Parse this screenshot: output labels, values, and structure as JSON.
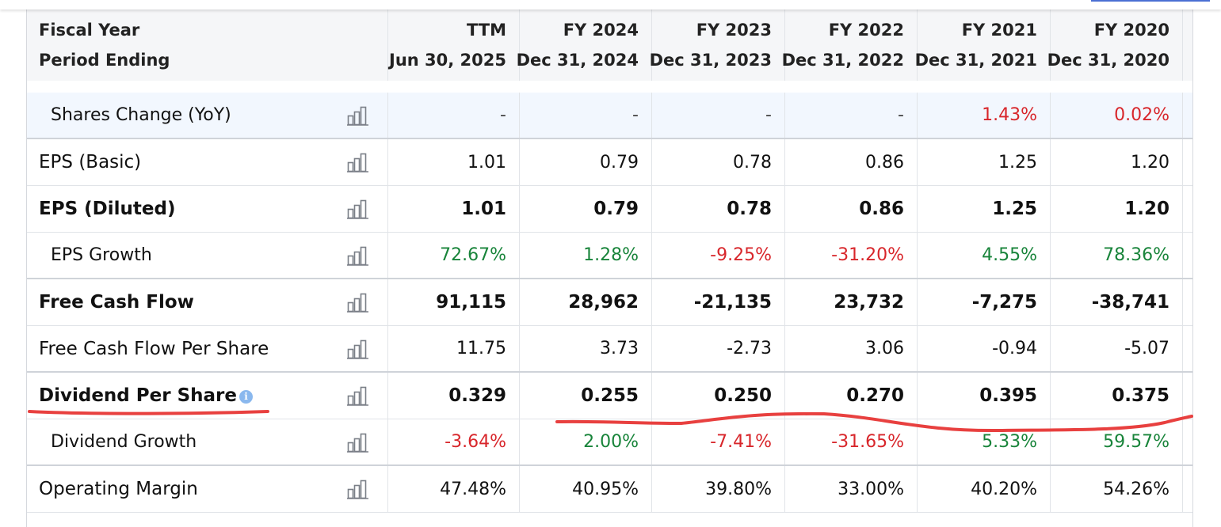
{
  "header": {
    "label_line1": "Fiscal Year",
    "label_line2": "Period Ending",
    "columns": [
      {
        "line1": "TTM",
        "line2": "Jun 30, 2025"
      },
      {
        "line1": "FY 2024",
        "line2": "Dec 31, 2024"
      },
      {
        "line1": "FY 2023",
        "line2": "Dec 31, 2023"
      },
      {
        "line1": "FY 2022",
        "line2": "Dec 31, 2022"
      },
      {
        "line1": "FY 2021",
        "line2": "Dec 31, 2021"
      },
      {
        "line1": "FY 2020",
        "line2": "Dec 31, 2020"
      }
    ]
  },
  "rows": [
    {
      "label": "Shares Change (YoY)",
      "style": "indent",
      "values": [
        "-",
        "-",
        "-",
        "-",
        "1.43%",
        "0.02%"
      ],
      "colors": [
        "dash",
        "dash",
        "dash",
        "dash",
        "red",
        "red"
      ]
    },
    {
      "label": "EPS (Basic)",
      "style": "plain",
      "values": [
        "1.01",
        "0.79",
        "0.78",
        "0.86",
        "1.25",
        "1.20"
      ],
      "colors": [
        "",
        "",
        "",
        "",
        "",
        ""
      ]
    },
    {
      "label": "EPS (Diluted)",
      "style": "bold",
      "values": [
        "1.01",
        "0.79",
        "0.78",
        "0.86",
        "1.25",
        "1.20"
      ],
      "colors": [
        "",
        "",
        "",
        "",
        "",
        ""
      ]
    },
    {
      "label": "EPS Growth",
      "style": "indent",
      "values": [
        "72.67%",
        "1.28%",
        "-9.25%",
        "-31.20%",
        "4.55%",
        "78.36%"
      ],
      "colors": [
        "green",
        "green",
        "red",
        "red",
        "green",
        "green"
      ]
    },
    {
      "label": "Free Cash Flow",
      "style": "bold",
      "values": [
        "91,115",
        "28,962",
        "-21,135",
        "23,732",
        "-7,275",
        "-38,741"
      ],
      "colors": [
        "",
        "",
        "",
        "",
        "",
        ""
      ]
    },
    {
      "label": "Free Cash Flow Per Share",
      "style": "plain",
      "values": [
        "11.75",
        "3.73",
        "-2.73",
        "3.06",
        "-0.94",
        "-5.07"
      ],
      "colors": [
        "",
        "",
        "",
        "",
        "",
        ""
      ]
    },
    {
      "label": "Dividend Per Share",
      "style": "bold",
      "info": true,
      "values": [
        "0.329",
        "0.255",
        "0.250",
        "0.270",
        "0.395",
        "0.375"
      ],
      "colors": [
        "",
        "",
        "",
        "",
        "",
        ""
      ]
    },
    {
      "label": "Dividend Growth",
      "style": "indent",
      "values": [
        "-3.64%",
        "2.00%",
        "-7.41%",
        "-31.65%",
        "5.33%",
        "59.57%"
      ],
      "colors": [
        "red",
        "green",
        "red",
        "red",
        "green",
        "green"
      ]
    },
    {
      "label": "Operating Margin",
      "style": "plain",
      "values": [
        "47.48%",
        "40.95%",
        "39.80%",
        "33.00%",
        "40.20%",
        "54.26%"
      ],
      "colors": [
        "",
        "",
        "",
        "",
        "",
        ""
      ]
    }
  ],
  "icons": {
    "chart": "bar-chart-icon",
    "info": "info-icon"
  },
  "colors": {
    "positive": "#18843a",
    "negative": "#d8262b",
    "annotation": "#e8403f"
  }
}
